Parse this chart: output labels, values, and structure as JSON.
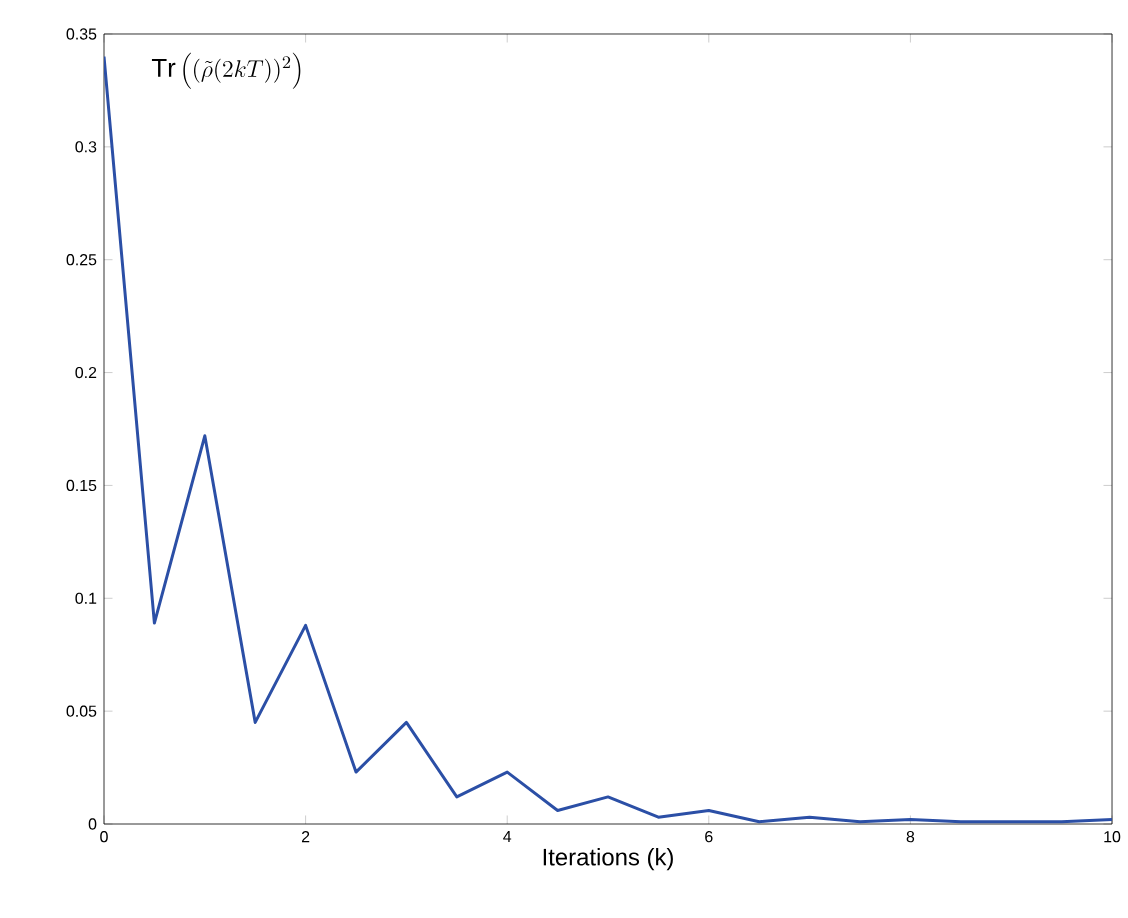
{
  "chart_data": {
    "type": "line",
    "xlabel": "Iterations (k)",
    "annotations": [
      "\\mathrm{Tr}\\left((\\tilde{\\rho}(2kT))^{2}\\right)"
    ],
    "x": [
      0,
      0.5,
      1,
      1.5,
      2,
      2.5,
      3,
      3.5,
      4,
      4.5,
      5,
      5.5,
      6,
      6.5,
      7,
      7.5,
      8,
      8.5,
      9,
      9.5,
      10
    ],
    "series": [
      {
        "color": "#2b4fa6",
        "values": [
          0.34,
          0.089,
          0.172,
          0.045,
          0.088,
          0.023,
          0.045,
          0.012,
          0.023,
          0.006,
          0.012,
          0.003,
          0.006,
          0.001,
          0.003,
          0.001,
          0.002,
          0.001,
          0.001,
          0.001,
          0.002
        ]
      }
    ],
    "xlim": [
      0,
      10
    ],
    "ylim": [
      0,
      0.35
    ],
    "xticks": [
      0,
      2,
      4,
      6,
      8,
      10
    ],
    "yticks": [
      0,
      0.05,
      0.1,
      0.15,
      0.2,
      0.25,
      0.3,
      0.35
    ],
    "marker": "none",
    "line_style": "solid"
  }
}
